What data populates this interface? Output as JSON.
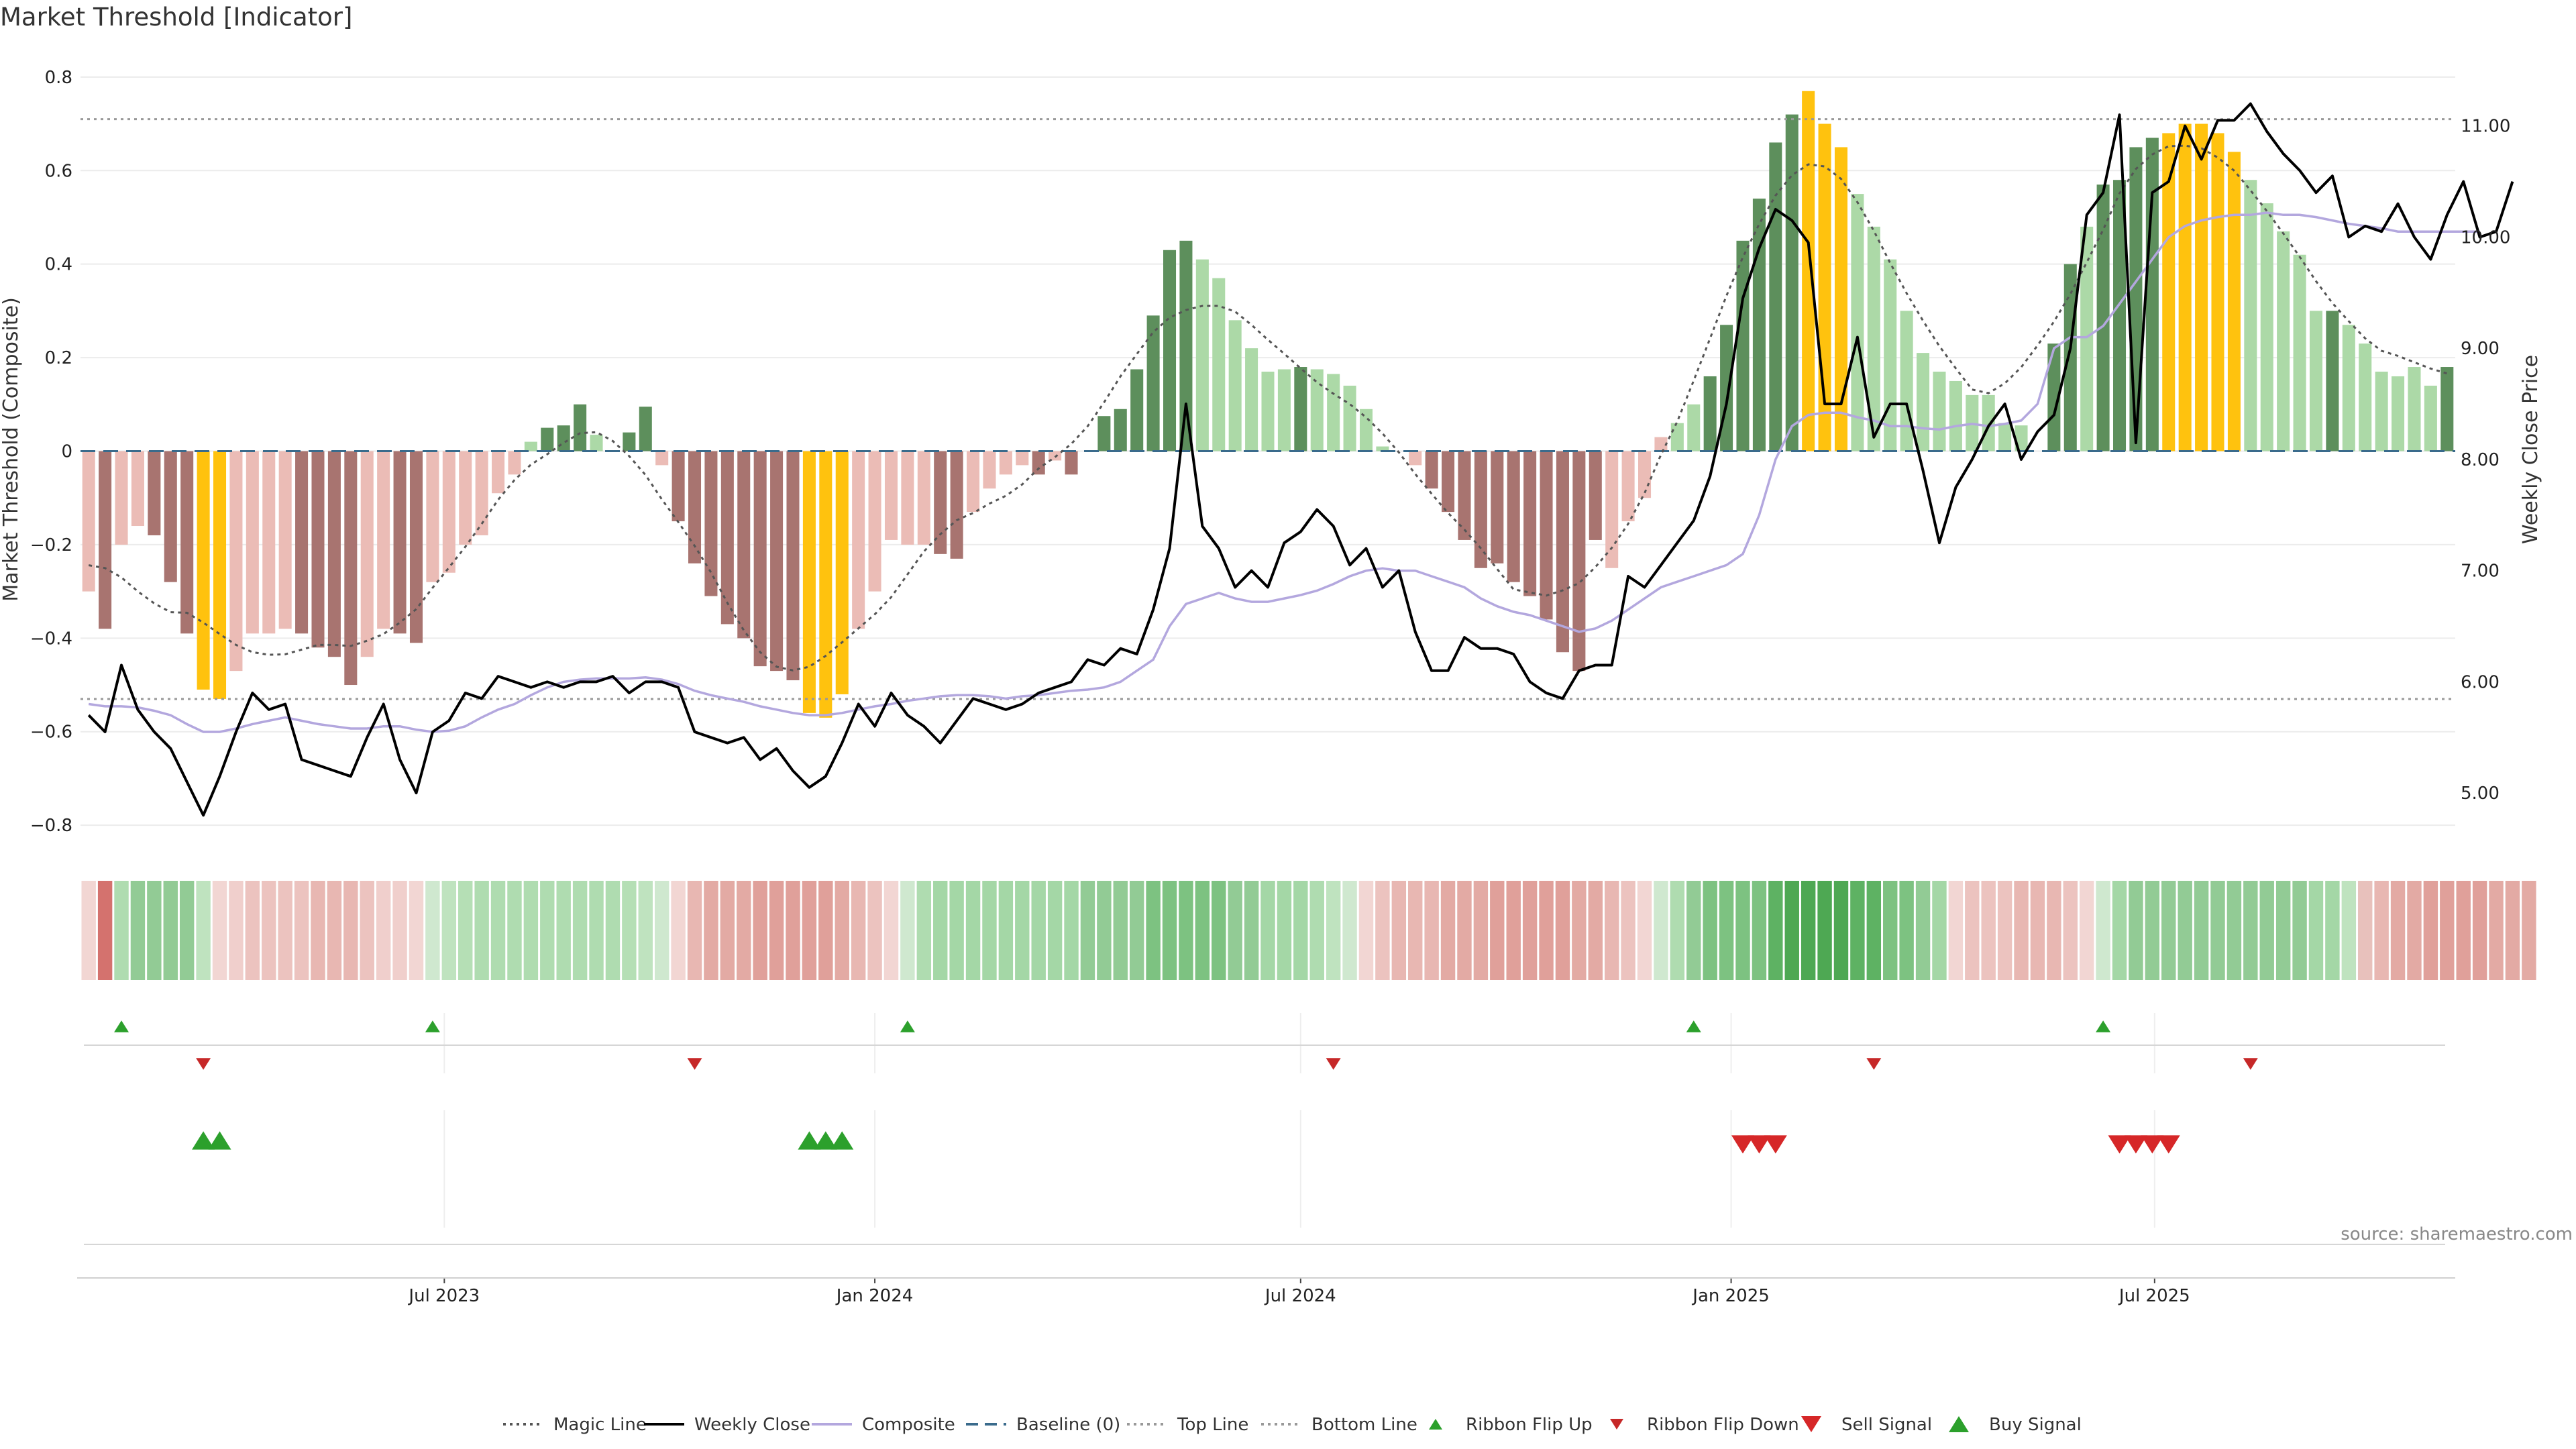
{
  "chart_data": {
    "type": "bar",
    "title": "Market Threshold [Indicator]",
    "ylabel": "Market Threshold (Composite)",
    "y2label": "Weekly Close Price",
    "source": "source: sharemaestro.com",
    "ylim": [
      -0.85,
      0.85
    ],
    "y2lim": [
      4.5,
      11.65
    ],
    "yticks": [
      "0.8",
      "0.6",
      "0.4",
      "0.2",
      "0",
      "−0.2",
      "−0.4",
      "−0.6",
      "−0.8"
    ],
    "y2ticks": [
      "11.00",
      "10.00",
      "9.00",
      "8.00",
      "7.00",
      "6.00",
      "5.00"
    ],
    "xticks": [
      "Jul 2023",
      "Jan 2024",
      "Jul 2024",
      "Jan 2025",
      "Jul 2025"
    ],
    "x_start": "2023-01-30",
    "x_step_days": 7,
    "top_line": 0.71,
    "bottom_line": -0.53,
    "composite_values": [
      -0.3,
      -0.38,
      -0.2,
      -0.16,
      -0.18,
      -0.28,
      -0.39,
      -0.51,
      -0.53,
      -0.47,
      -0.39,
      -0.39,
      -0.38,
      -0.39,
      -0.42,
      -0.44,
      -0.5,
      -0.44,
      -0.38,
      -0.39,
      -0.41,
      -0.28,
      -0.26,
      -0.2,
      -0.18,
      -0.09,
      -0.05,
      0.02,
      0.05,
      0.055,
      0.1,
      0.035,
      0.0,
      0.04,
      0.095,
      -0.03,
      -0.15,
      -0.24,
      -0.31,
      -0.37,
      -0.4,
      -0.46,
      -0.47,
      -0.49,
      -0.56,
      -0.57,
      -0.52,
      -0.38,
      -0.3,
      -0.19,
      -0.2,
      -0.2,
      -0.22,
      -0.23,
      -0.13,
      -0.08,
      -0.05,
      -0.03,
      -0.05,
      -0.02,
      -0.05,
      0.0,
      0.075,
      0.09,
      0.175,
      0.29,
      0.43,
      0.45,
      0.41,
      0.37,
      0.28,
      0.22,
      0.17,
      0.175,
      0.18,
      0.175,
      0.165,
      0.14,
      0.09,
      0.01,
      0.0,
      -0.03,
      -0.08,
      -0.13,
      -0.19,
      -0.25,
      -0.24,
      -0.28,
      -0.31,
      -0.36,
      -0.43,
      -0.47,
      -0.19,
      -0.25,
      -0.15,
      -0.1,
      0.03,
      0.06,
      0.1,
      0.16,
      0.27,
      0.45,
      0.54,
      0.66,
      0.72,
      0.77,
      0.7,
      0.65,
      0.55,
      0.48,
      0.41,
      0.3,
      0.21,
      0.17,
      0.15,
      0.12,
      0.12,
      0.06,
      0.055,
      0.0,
      0.23,
      0.4,
      0.48,
      0.57,
      0.58,
      0.65,
      0.67,
      0.68,
      0.7,
      0.7,
      0.68,
      0.64,
      0.58,
      0.53,
      0.47,
      0.42,
      0.3,
      0.3,
      0.27,
      0.23,
      0.17,
      0.16,
      0.18,
      0.14,
      0.18
    ],
    "bar_colors": [
      "#ebbcb6",
      "#a87470",
      "#ebbcb6",
      "#ebbcb6",
      "#a87470",
      "#a87470",
      "#a87470",
      "#ffc20e",
      "#ffc20e",
      "#ebbcb6",
      "#ebbcb6",
      "#ebbcb6",
      "#ebbcb6",
      "#a87470",
      "#a87470",
      "#a87470",
      "#a87470",
      "#ebbcb6",
      "#ebbcb6",
      "#a87470",
      "#a87470",
      "#ebbcb6",
      "#ebbcb6",
      "#ebbcb6",
      "#ebbcb6",
      "#ebbcb6",
      "#ebbcb6",
      "#acd9a7",
      "#5d8f5c",
      "#5d8f5c",
      "#5d8f5c",
      "#acd9a7",
      "#acd9a7",
      "#5d8f5c",
      "#5d8f5c",
      "#ebbcb6",
      "#a87470",
      "#a87470",
      "#a87470",
      "#a87470",
      "#a87470",
      "#a87470",
      "#a87470",
      "#a87470",
      "#ffc20e",
      "#ffc20e",
      "#ffc20e",
      "#ebbcb6",
      "#ebbcb6",
      "#ebbcb6",
      "#ebbcb6",
      "#ebbcb6",
      "#a87470",
      "#a87470",
      "#ebbcb6",
      "#ebbcb6",
      "#ebbcb6",
      "#ebbcb6",
      "#a87470",
      "#ebbcb6",
      "#a87470",
      "#5d8f5c",
      "#5d8f5c",
      "#5d8f5c",
      "#5d8f5c",
      "#5d8f5c",
      "#5d8f5c",
      "#5d8f5c",
      "#acd9a7",
      "#acd9a7",
      "#acd9a7",
      "#acd9a7",
      "#acd9a7",
      "#acd9a7",
      "#5d8f5c",
      "#acd9a7",
      "#acd9a7",
      "#acd9a7",
      "#acd9a7",
      "#acd9a7",
      "#acd9a7",
      "#ebbcb6",
      "#a87470",
      "#a87470",
      "#a87470",
      "#a87470",
      "#a87470",
      "#a87470",
      "#a87470",
      "#a87470",
      "#a87470",
      "#a87470",
      "#a87470",
      "#ebbcb6",
      "#ebbcb6",
      "#ebbcb6",
      "#ebbcb6",
      "#acd9a7",
      "#acd9a7",
      "#5d8f5c",
      "#5d8f5c",
      "#5d8f5c",
      "#5d8f5c",
      "#5d8f5c",
      "#5d8f5c",
      "#ffc20e",
      "#ffc20e",
      "#ffc20e",
      "#acd9a7",
      "#acd9a7",
      "#acd9a7",
      "#acd9a7",
      "#acd9a7",
      "#acd9a7",
      "#acd9a7",
      "#acd9a7",
      "#acd9a7",
      "#acd9a7",
      "#acd9a7",
      "#acd9a7",
      "#5d8f5c",
      "#5d8f5c",
      "#acd9a7",
      "#5d8f5c",
      "#5d8f5c",
      "#5d8f5c",
      "#5d8f5c",
      "#ffc20e",
      "#ffc20e",
      "#ffc20e",
      "#ffc20e",
      "#ffc20e",
      "#acd9a7",
      "#acd9a7",
      "#acd9a7",
      "#acd9a7",
      "#acd9a7",
      "#5d8f5c",
      "#acd9a7",
      "#acd9a7",
      "#acd9a7",
      "#acd9a7",
      "#acd9a7",
      "#acd9a7",
      "#5d8f5c",
      "#acd9a7",
      "#5d8f5c"
    ],
    "weekly_close": [
      5.7,
      5.55,
      6.15,
      5.75,
      5.55,
      5.4,
      5.1,
      4.8,
      5.15,
      5.55,
      5.9,
      5.75,
      5.8,
      5.3,
      5.25,
      5.2,
      5.15,
      5.5,
      5.8,
      5.3,
      5.0,
      5.55,
      5.65,
      5.9,
      5.85,
      6.05,
      6.0,
      5.95,
      6.0,
      5.95,
      6.0,
      6.0,
      6.05,
      5.9,
      6.0,
      6.0,
      5.95,
      5.55,
      5.5,
      5.45,
      5.5,
      5.3,
      5.4,
      5.2,
      5.05,
      5.15,
      5.45,
      5.8,
      5.6,
      5.9,
      5.7,
      5.6,
      5.45,
      5.65,
      5.85,
      5.8,
      5.75,
      5.8,
      5.9,
      5.95,
      6.0,
      6.2,
      6.15,
      6.3,
      6.25,
      6.65,
      7.2,
      8.5,
      7.4,
      7.2,
      6.85,
      7.0,
      6.85,
      7.25,
      7.35,
      7.55,
      7.4,
      7.05,
      7.2,
      6.85,
      7.0,
      6.45,
      6.1,
      6.1,
      6.4,
      6.3,
      6.3,
      6.25,
      6.0,
      5.9,
      5.85,
      6.1,
      6.15,
      6.15,
      6.95,
      6.85,
      7.05,
      7.25,
      7.45,
      7.85,
      8.5,
      9.45,
      9.9,
      10.25,
      10.15,
      9.95,
      8.5,
      8.5,
      9.1,
      8.2,
      8.5,
      8.5,
      7.9,
      7.25,
      7.75,
      8.0,
      8.3,
      8.5,
      8.0,
      8.25,
      8.4,
      9.0,
      10.2,
      10.4,
      11.1,
      8.15,
      10.4,
      10.5,
      11.0,
      10.7,
      11.05,
      11.05,
      11.2,
      10.95,
      10.75,
      10.6,
      10.4,
      10.55,
      10.0,
      10.1,
      10.05,
      10.3,
      10.0,
      9.8,
      10.2,
      10.5,
      10.0,
      10.05,
      10.5
    ],
    "composite_line": [
      5.8,
      5.78,
      5.78,
      5.77,
      5.74,
      5.7,
      5.62,
      5.55,
      5.55,
      5.58,
      5.62,
      5.65,
      5.68,
      5.65,
      5.62,
      5.6,
      5.58,
      5.58,
      5.6,
      5.6,
      5.57,
      5.55,
      5.56,
      5.6,
      5.68,
      5.75,
      5.8,
      5.88,
      5.95,
      6.0,
      6.02,
      6.03,
      6.03,
      6.03,
      6.04,
      6.02,
      5.98,
      5.92,
      5.88,
      5.85,
      5.82,
      5.78,
      5.75,
      5.72,
      5.7,
      5.7,
      5.72,
      5.75,
      5.78,
      5.8,
      5.83,
      5.85,
      5.87,
      5.88,
      5.88,
      5.87,
      5.85,
      5.87,
      5.88,
      5.9,
      5.92,
      5.93,
      5.95,
      6.0,
      6.1,
      6.2,
      6.5,
      6.7,
      6.75,
      6.8,
      6.75,
      6.72,
      6.72,
      6.75,
      6.78,
      6.82,
      6.88,
      6.95,
      7.0,
      7.02,
      7.0,
      7.0,
      6.95,
      6.9,
      6.85,
      6.75,
      6.68,
      6.63,
      6.6,
      6.55,
      6.5,
      6.45,
      6.48,
      6.55,
      6.65,
      6.75,
      6.85,
      6.9,
      6.95,
      7.0,
      7.05,
      7.15,
      7.5,
      8.0,
      8.3,
      8.4,
      8.42,
      8.42,
      8.38,
      8.35,
      8.3,
      8.3,
      8.28,
      8.27,
      8.3,
      8.32,
      8.3,
      8.32,
      8.35,
      8.5,
      9.0,
      9.1,
      9.1,
      9.2,
      9.4,
      9.6,
      9.8,
      10.0,
      10.1,
      10.15,
      10.18,
      10.2,
      10.2,
      10.22,
      10.2,
      10.2,
      10.18,
      10.15,
      10.12,
      10.1,
      10.08,
      10.05,
      10.05,
      10.05,
      10.05,
      10.05,
      10.05
    ],
    "ribbon_colors": [
      "#f2d6d3",
      "#d4726e",
      "#afdcb0",
      "#92cb95",
      "#92cb95",
      "#92cb95",
      "#92cb95",
      "#bfe3bf",
      "#f2d6d3",
      "#f0cfcc",
      "#ecc3bf",
      "#ecc3bf",
      "#ecc3bf",
      "#ecc3bf",
      "#e8b7b2",
      "#e8b7b2",
      "#e8b7b2",
      "#ecc3bf",
      "#f0cfcc",
      "#f0cfcc",
      "#f2d6d3",
      "#cfe8cf",
      "#bfe3bf",
      "#b5dfb5",
      "#afdcb0",
      "#afdcb0",
      "#afdcb0",
      "#afdcb0",
      "#afdcb0",
      "#afdcb0",
      "#afdcb0",
      "#afdcb0",
      "#afdcb0",
      "#b5dfb5",
      "#bfe3bf",
      "#cfe8cf",
      "#f2d6d3",
      "#e8b7b2",
      "#e3aaa4",
      "#e3aaa4",
      "#e3aaa4",
      "#e0a09a",
      "#e0a09a",
      "#e0a09a",
      "#e0a09a",
      "#e0a09a",
      "#e3aaa4",
      "#e8b7b2",
      "#ecc3bf",
      "#f2d6d3",
      "#cfe8cf",
      "#afdcb0",
      "#a4d7a6",
      "#a4d7a6",
      "#a4d7a6",
      "#a4d7a6",
      "#a4d7a6",
      "#a4d7a6",
      "#a4d7a6",
      "#a4d7a6",
      "#a4d7a6",
      "#92cb95",
      "#92cb95",
      "#92cb95",
      "#92cb95",
      "#7dc281",
      "#7dc281",
      "#7dc281",
      "#7dc281",
      "#7dc281",
      "#92cb95",
      "#92cb95",
      "#a4d7a6",
      "#a4d7a6",
      "#a4d7a6",
      "#afdcb0",
      "#bfe3bf",
      "#cfe8cf",
      "#f2d6d3",
      "#ecc3bf",
      "#e8b7b2",
      "#e8b7b2",
      "#e8b7b2",
      "#e3aaa4",
      "#e3aaa4",
      "#e3aaa4",
      "#e0a09a",
      "#e0a09a",
      "#e0a09a",
      "#e0a09a",
      "#e0a09a",
      "#e3aaa4",
      "#e3aaa4",
      "#e8b7b2",
      "#ecc3bf",
      "#f2d6d3",
      "#cfe8cf",
      "#afdcb0",
      "#92cb95",
      "#7dc281",
      "#7dc281",
      "#7dc281",
      "#7dc281",
      "#5eb263",
      "#4ea853",
      "#4ea853",
      "#4ea853",
      "#4ea853",
      "#5eb263",
      "#5eb263",
      "#7dc281",
      "#7dc281",
      "#92cb95",
      "#a4d7a6",
      "#f2d6d3",
      "#ecc3bf",
      "#ecc3bf",
      "#ecc3bf",
      "#e8b7b2",
      "#e8b7b2",
      "#e8b7b2",
      "#ecc3bf",
      "#f2d6d3",
      "#cfe8cf",
      "#a4d7a6",
      "#92cb95",
      "#92cb95",
      "#92cb95",
      "#92cb95",
      "#92cb95",
      "#92cb95",
      "#92cb95",
      "#92cb95",
      "#92cb95",
      "#92cb95",
      "#92cb95",
      "#a4d7a6",
      "#a4d7a6",
      "#bfe3bf",
      "#e8c1bc",
      "#e8b7b2",
      "#e3aaa4",
      "#e3aaa4",
      "#e0a09a",
      "#e0a09a",
      "#e0a09a",
      "#e0a09a",
      "#e3aaa4",
      "#e3aaa4",
      "#e3aaa4"
    ],
    "ribbon_flip_up": [
      2,
      21,
      50,
      98,
      123
    ],
    "ribbon_flip_down": [
      7,
      37,
      76,
      109,
      132
    ],
    "buy_signal": [
      7,
      8,
      44,
      45,
      46
    ],
    "sell_signal": [
      101,
      102,
      103,
      124,
      125,
      126,
      127
    ],
    "legend": [
      {
        "label": "Magic Line",
        "kind": "dotted",
        "color": "#555555"
      },
      {
        "label": "Weekly Close",
        "kind": "solid",
        "color": "#000000"
      },
      {
        "label": "Composite",
        "kind": "solid",
        "color": "#b3a7de"
      },
      {
        "label": "Baseline (0)",
        "kind": "dashed",
        "color": "#3a6b8c"
      },
      {
        "label": "Top Line",
        "kind": "dotted",
        "color": "#999999"
      },
      {
        "label": "Bottom Line",
        "kind": "dotted",
        "color": "#999999"
      },
      {
        "label": "Ribbon Flip Up",
        "kind": "tri-up-small",
        "color": "#2ca02c"
      },
      {
        "label": "Ribbon Flip Down",
        "kind": "tri-down-small",
        "color": "#c62828"
      },
      {
        "label": "Sell Signal",
        "kind": "tri-down",
        "color": "#d62728"
      },
      {
        "label": "Buy Signal",
        "kind": "tri-up",
        "color": "#2ca02c"
      }
    ]
  }
}
